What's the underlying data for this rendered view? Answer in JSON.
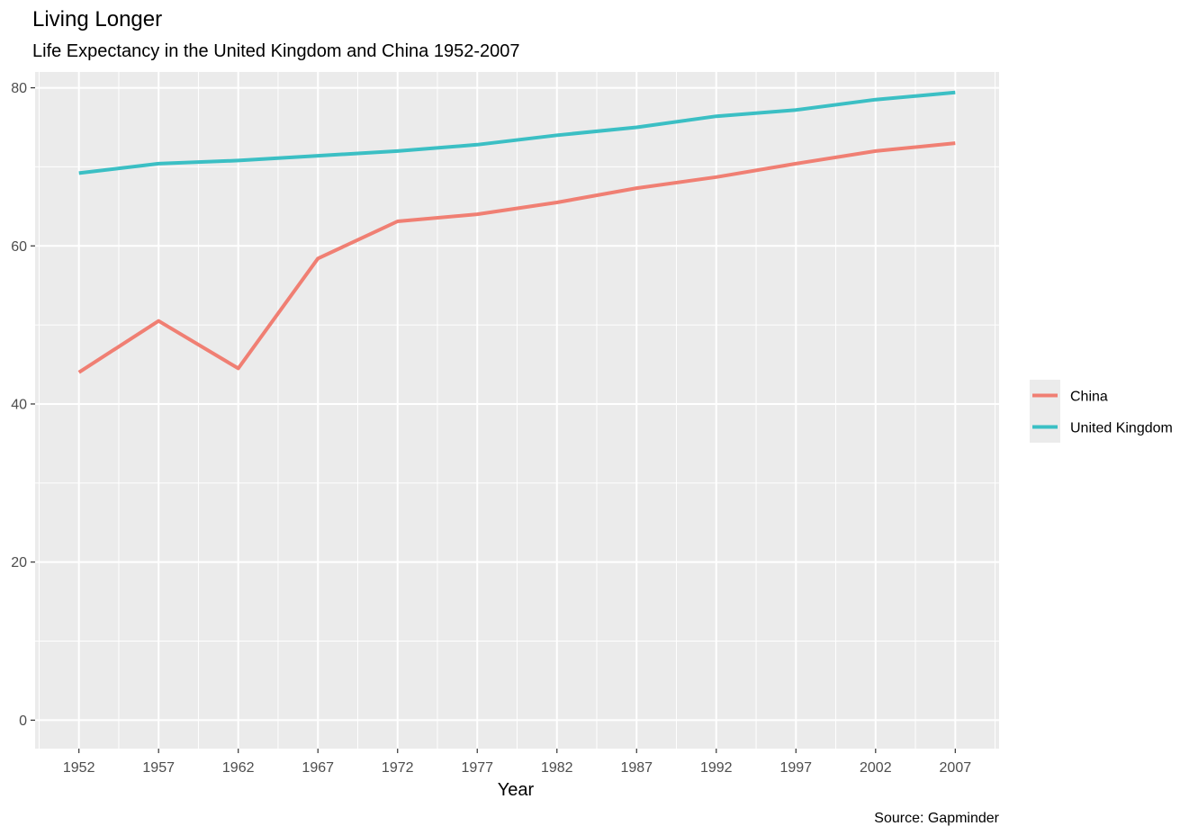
{
  "chart_data": {
    "type": "line",
    "title": "Living Longer",
    "subtitle": "Life Expectancy in the United Kingdom and China 1952-2007",
    "xlabel": "Year",
    "ylabel": "",
    "caption": "Source: Gapminder",
    "x": [
      1952,
      1957,
      1962,
      1967,
      1972,
      1977,
      1982,
      1987,
      1992,
      1997,
      2002,
      2007
    ],
    "x_ticks": [
      "1952",
      "1957",
      "1962",
      "1967",
      "1972",
      "1977",
      "1982",
      "1987",
      "1992",
      "1997",
      "2002",
      "2007"
    ],
    "y_ticks": [
      "0",
      "20",
      "40",
      "60",
      "80"
    ],
    "ylim": [
      0,
      80
    ],
    "grid": true,
    "legend_position": "right",
    "series": [
      {
        "name": "China",
        "color": "#f07f73",
        "values": [
          44.0,
          50.5,
          44.5,
          58.4,
          63.1,
          64.0,
          65.5,
          67.3,
          68.7,
          70.4,
          72.0,
          73.0
        ]
      },
      {
        "name": "United Kingdom",
        "color": "#3bbfc4",
        "values": [
          69.2,
          70.4,
          70.8,
          71.4,
          72.0,
          72.8,
          74.0,
          75.0,
          76.4,
          77.2,
          78.5,
          79.4
        ]
      }
    ]
  }
}
